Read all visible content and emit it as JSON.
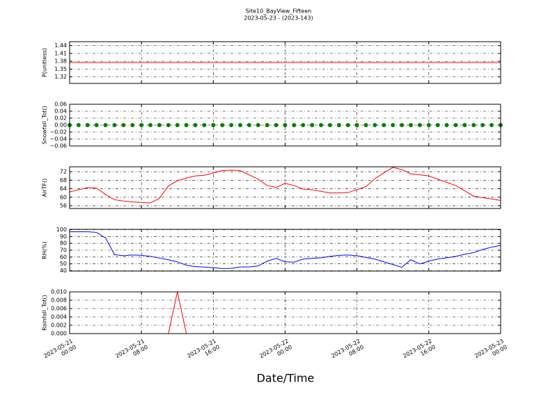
{
  "chart_data": {
    "type": "panels",
    "title": "Site10_BayView_Fifteen",
    "subtitle": "2023-05-23 - (2023-143)",
    "xlabel": "Date/Time",
    "xlim": [
      "2023-05-21 00:00",
      "2023-05-23 00:00"
    ],
    "xticks": [
      {
        "value": "2023-05-21 00:00",
        "label": "2023-05-21\n00:00"
      },
      {
        "value": "2023-05-21 08:00",
        "label": "2023-05-21\n08:00"
      },
      {
        "value": "2023-05-21 16:00",
        "label": "2023-05-21\n16:00"
      },
      {
        "value": "2023-05-22 00:00",
        "label": "2023-05-22\n00:00"
      },
      {
        "value": "2023-05-22 08:00",
        "label": "2023-05-22\n08:00"
      },
      {
        "value": "2023-05-22 16:00",
        "label": "2023-05-22\n16:00"
      },
      {
        "value": "2023-05-23 00:00",
        "label": "2023-05-23\n00:00"
      }
    ],
    "grid": true,
    "x": [
      "2023-05-21 00:00",
      "2023-05-21 01:00",
      "2023-05-21 02:00",
      "2023-05-21 03:00",
      "2023-05-21 04:00",
      "2023-05-21 05:00",
      "2023-05-21 06:00",
      "2023-05-21 07:00",
      "2023-05-21 08:00",
      "2023-05-21 09:00",
      "2023-05-21 10:00",
      "2023-05-21 11:00",
      "2023-05-21 12:00",
      "2023-05-21 13:00",
      "2023-05-21 14:00",
      "2023-05-21 15:00",
      "2023-05-21 16:00",
      "2023-05-21 17:00",
      "2023-05-21 18:00",
      "2023-05-21 19:00",
      "2023-05-21 20:00",
      "2023-05-21 21:00",
      "2023-05-21 22:00",
      "2023-05-21 23:00",
      "2023-05-22 00:00",
      "2023-05-22 01:00",
      "2023-05-22 02:00",
      "2023-05-22 03:00",
      "2023-05-22 04:00",
      "2023-05-22 05:00",
      "2023-05-22 06:00",
      "2023-05-22 07:00",
      "2023-05-22 08:00",
      "2023-05-22 09:00",
      "2023-05-22 10:00",
      "2023-05-22 11:00",
      "2023-05-22 12:00",
      "2023-05-22 13:00",
      "2023-05-22 14:00",
      "2023-05-22 15:00",
      "2023-05-22 16:00",
      "2023-05-22 17:00",
      "2023-05-22 18:00",
      "2023-05-22 19:00",
      "2023-05-22 20:00",
      "2023-05-22 21:00",
      "2023-05-22 22:00",
      "2023-05-22 23:00",
      "2023-05-23 00:00"
    ],
    "panels": [
      {
        "type": "line",
        "ylabel": "P(unitless)",
        "ylim": [
          1.295,
          1.455
        ],
        "yticks": [
          1.32,
          1.35,
          1.38,
          1.41,
          1.44
        ],
        "series": [
          {
            "color": "#ff0000",
            "values": [
              1.375,
              1.375,
              1.375,
              1.375,
              1.375,
              1.375,
              1.375,
              1.375,
              1.375,
              1.375,
              1.375,
              1.375,
              1.375,
              1.375,
              1.375,
              1.375,
              1.375,
              1.375,
              1.375,
              1.375,
              1.375,
              1.375,
              1.375,
              1.375,
              1.375,
              1.375,
              1.375,
              1.375,
              1.375,
              1.375,
              1.375,
              1.375,
              1.375,
              1.375,
              1.375,
              1.375,
              1.375,
              1.375,
              1.375,
              1.375,
              1.375,
              1.375,
              1.375,
              1.375,
              1.375,
              1.375,
              1.375,
              1.375,
              1.375
            ]
          }
        ]
      },
      {
        "type": "scatter",
        "ylabel": "Snowfall_Tot()",
        "ylim": [
          -0.06,
          0.06
        ],
        "yticks": [
          {
            "value": -0.06,
            "label": "−0.06"
          },
          {
            "value": -0.04,
            "label": "−0.04"
          },
          {
            "value": -0.02,
            "label": "−0.02"
          },
          {
            "value": 0,
            "label": "0.00"
          },
          0.02,
          0.04,
          0.06
        ],
        "series": [
          {
            "color": "#008000",
            "values": [
              0,
              0,
              0,
              0,
              0,
              0,
              0,
              0,
              0,
              0,
              0,
              0,
              0,
              0,
              0,
              0,
              0,
              0,
              0,
              0,
              0,
              0,
              0,
              0,
              0,
              0,
              0,
              0,
              0,
              0,
              0,
              0,
              0,
              0,
              0,
              0,
              0,
              0,
              0,
              0,
              0,
              0,
              0,
              0,
              0,
              0,
              0,
              0,
              0
            ]
          }
        ]
      },
      {
        "type": "line",
        "ylabel": "AirTF()",
        "ylim": [
          54.7,
          74.3
        ],
        "yticks": [
          56,
          60,
          64,
          68,
          72
        ],
        "series": [
          {
            "color": "#ff0000",
            "values": [
              62.5,
              63.5,
              64.5,
              64.3,
              61.3,
              58.8,
              58.2,
              57.8,
              57.5,
              57.3,
              59.5,
              65.3,
              67.8,
              69,
              70,
              70.3,
              71.4,
              72.5,
              72.7,
              72.5,
              70.5,
              68.5,
              65.5,
              64.6,
              66.5,
              65.5,
              63.8,
              63.5,
              62.8,
              62,
              62,
              62.2,
              63.6,
              65,
              68.7,
              71.5,
              74,
              73,
              71,
              70.5,
              70,
              68.5,
              67,
              65.5,
              63,
              60.5,
              59.8,
              59.2,
              58.5
            ]
          }
        ]
      },
      {
        "type": "line",
        "ylabel": "RH(%)",
        "ylim": [
          39.5,
          100.5
        ],
        "yticks": [
          40,
          50,
          60,
          70,
          80,
          90,
          100
        ],
        "series": [
          {
            "color": "#0000ff",
            "values": [
              97,
              97,
              97,
              96,
              88,
              63.5,
              62,
              63,
              62.5,
              61,
              58.5,
              56,
              53,
              48,
              46,
              45.3,
              44.5,
              43.2,
              43.5,
              45.5,
              45.5,
              47,
              54,
              58,
              53,
              52.5,
              57,
              58,
              59,
              61,
              62.5,
              63,
              62,
              59.5,
              57,
              53,
              49,
              45,
              56,
              50,
              54,
              57,
              59,
              61,
              64,
              66.5,
              71,
              74.5,
              77
            ]
          }
        ]
      },
      {
        "type": "line",
        "ylabel": "Rainfall_Tot()",
        "ylim": [
          0,
          0.01
        ],
        "yticks": [
          {
            "value": 0,
            "label": "0.000"
          },
          {
            "value": 0.002,
            "label": "0.002"
          },
          {
            "value": 0.004,
            "label": "0.004"
          },
          {
            "value": 0.006,
            "label": "0.006"
          },
          {
            "value": 0.008,
            "label": "0.008"
          },
          {
            "value": 0.01,
            "label": "0.010"
          }
        ],
        "series": [
          {
            "color": "#ff0000",
            "values": [
              0,
              0,
              0,
              0,
              0,
              0,
              0,
              0,
              0,
              0,
              0,
              0,
              0.01,
              0,
              0,
              0,
              0,
              0,
              0,
              0,
              0,
              0,
              0,
              0,
              0,
              0,
              0,
              0,
              0,
              0,
              0,
              0,
              0,
              0,
              0,
              0,
              0,
              0,
              0,
              0,
              0,
              0,
              0,
              0,
              0,
              0,
              0,
              0,
              0
            ]
          }
        ]
      }
    ]
  }
}
